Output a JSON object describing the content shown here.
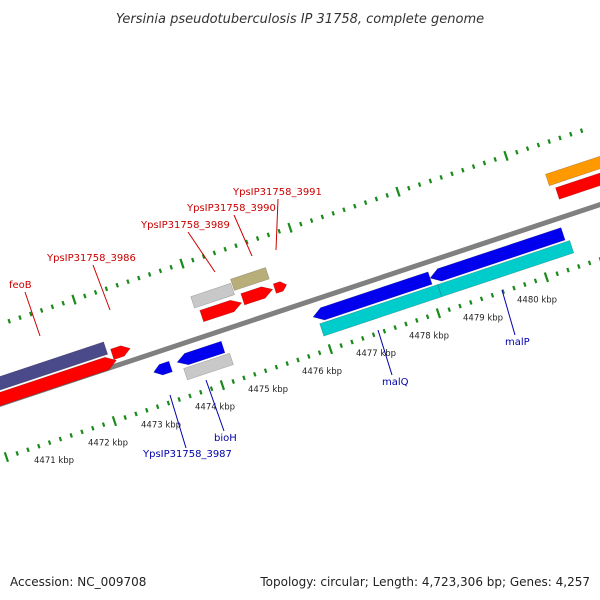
{
  "title": "Yersinia pseudotuberculosis IP 31758, complete genome",
  "accession": "Accession: NC_009708",
  "summary": "Topology: circular; Length: 4,723,306 bp; Genes: 4,257",
  "colors": {
    "backbone": "#808080",
    "tick": "#1a8a1a",
    "forward_label": "#cc0000",
    "reverse_label": "#0000aa",
    "red": "#ff0000",
    "blue": "#0000ee",
    "cyan": "#00cccc",
    "gray": "#c8c8c8",
    "khaki": "#b8ae7a",
    "slate": "#4a4a8a",
    "orange": "#ff9900"
  },
  "scale": {
    "labels": [
      {
        "kbp": 4471,
        "text": "4471 kbp"
      },
      {
        "kbp": 4472,
        "text": "4472 kbp"
      },
      {
        "kbp": 4473,
        "text": "4473 kbp"
      },
      {
        "kbp": 4474,
        "text": "4474 kbp"
      },
      {
        "kbp": 4475,
        "text": "4475 kbp"
      },
      {
        "kbp": 4476,
        "text": "4476 kbp"
      },
      {
        "kbp": 4477,
        "text": "4477 kbp"
      },
      {
        "kbp": 4478,
        "text": "4478 kbp"
      },
      {
        "kbp": 4479,
        "text": "4479 kbp"
      },
      {
        "kbp": 4480,
        "text": "4480 kbp"
      }
    ]
  },
  "forward_labels": [
    {
      "text": "feoB",
      "color": "#cc0000"
    },
    {
      "text": "YpsIP31758_3986",
      "color": "#cc0000"
    },
    {
      "text": "YpsIP31758_3989",
      "color": "#cc0000"
    },
    {
      "text": "YpsIP31758_3990",
      "color": "#cc0000"
    },
    {
      "text": "YpsIP31758_3991",
      "color": "#cc0000"
    }
  ],
  "reverse_labels": [
    {
      "text": "bioH",
      "color": "#0000aa"
    },
    {
      "text": "YpsIP31758_3987",
      "color": "#0000aa"
    },
    {
      "text": "malQ",
      "color": "#0000aa"
    },
    {
      "text": "malP",
      "color": "#0000aa"
    }
  ]
}
